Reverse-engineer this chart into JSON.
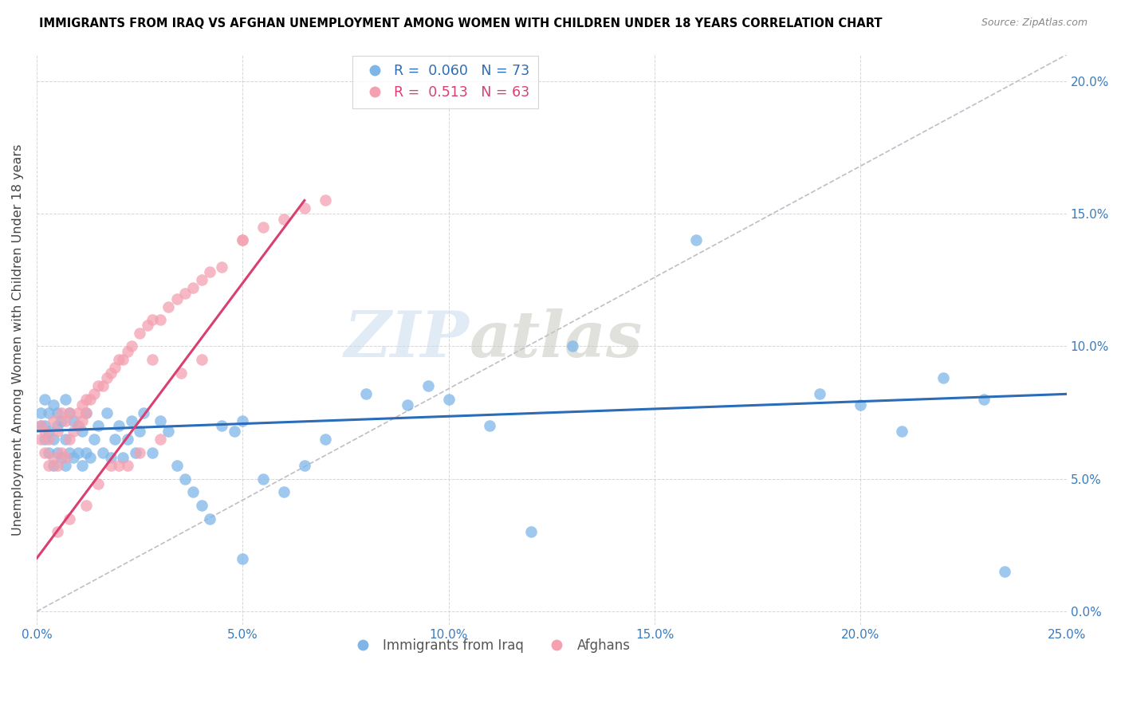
{
  "title": "IMMIGRANTS FROM IRAQ VS AFGHAN UNEMPLOYMENT AMONG WOMEN WITH CHILDREN UNDER 18 YEARS CORRELATION CHART",
  "source": "Source: ZipAtlas.com",
  "ylabel": "Unemployment Among Women with Children Under 18 years",
  "xlim": [
    0.0,
    0.25
  ],
  "ylim": [
    -0.005,
    0.21
  ],
  "xticks": [
    0.0,
    0.05,
    0.1,
    0.15,
    0.2,
    0.25
  ],
  "xtick_labels": [
    "0.0%",
    "5.0%",
    "10.0%",
    "15.0%",
    "20.0%",
    "25.0%"
  ],
  "yticks": [
    0.0,
    0.05,
    0.1,
    0.15,
    0.2
  ],
  "ytick_labels_right": [
    "0.0%",
    "5.0%",
    "10.0%",
    "15.0%",
    "20.0%"
  ],
  "color_iraq": "#7EB6E8",
  "color_afghan": "#F4A0B0",
  "trendline_iraq_color": "#2B6CB8",
  "trendline_afghan_color": "#D94070",
  "trendline_diag_color": "#BEBEC8",
  "watermark_zip": "ZIP",
  "watermark_atlas": "atlas",
  "legend_iraq_label": "R =  0.060   N = 73",
  "legend_afghan_label": "R =  0.513   N = 63",
  "bottom_legend_iraq": "Immigrants from Iraq",
  "bottom_legend_afghan": "Afghans",
  "iraq_x": [
    0.001,
    0.001,
    0.002,
    0.002,
    0.002,
    0.003,
    0.003,
    0.003,
    0.004,
    0.004,
    0.004,
    0.005,
    0.005,
    0.005,
    0.006,
    0.006,
    0.007,
    0.007,
    0.007,
    0.008,
    0.008,
    0.009,
    0.009,
    0.01,
    0.01,
    0.011,
    0.011,
    0.012,
    0.012,
    0.013,
    0.014,
    0.015,
    0.016,
    0.017,
    0.018,
    0.019,
    0.02,
    0.021,
    0.022,
    0.023,
    0.024,
    0.025,
    0.026,
    0.028,
    0.03,
    0.032,
    0.034,
    0.036,
    0.038,
    0.04,
    0.042,
    0.045,
    0.048,
    0.05,
    0.055,
    0.06,
    0.065,
    0.07,
    0.08,
    0.09,
    0.1,
    0.11,
    0.13,
    0.16,
    0.19,
    0.2,
    0.21,
    0.22,
    0.23,
    0.235,
    0.05,
    0.095,
    0.12
  ],
  "iraq_y": [
    0.07,
    0.075,
    0.065,
    0.07,
    0.08,
    0.06,
    0.068,
    0.075,
    0.055,
    0.065,
    0.078,
    0.06,
    0.07,
    0.075,
    0.058,
    0.072,
    0.055,
    0.065,
    0.08,
    0.06,
    0.075,
    0.058,
    0.072,
    0.06,
    0.07,
    0.055,
    0.068,
    0.06,
    0.075,
    0.058,
    0.065,
    0.07,
    0.06,
    0.075,
    0.058,
    0.065,
    0.07,
    0.058,
    0.065,
    0.072,
    0.06,
    0.068,
    0.075,
    0.06,
    0.072,
    0.068,
    0.055,
    0.05,
    0.045,
    0.04,
    0.035,
    0.07,
    0.068,
    0.072,
    0.05,
    0.045,
    0.055,
    0.065,
    0.082,
    0.078,
    0.08,
    0.07,
    0.1,
    0.14,
    0.082,
    0.078,
    0.068,
    0.088,
    0.08,
    0.015,
    0.02,
    0.085,
    0.03
  ],
  "afghan_x": [
    0.001,
    0.001,
    0.002,
    0.002,
    0.003,
    0.003,
    0.004,
    0.004,
    0.005,
    0.005,
    0.006,
    0.006,
    0.007,
    0.007,
    0.008,
    0.008,
    0.009,
    0.01,
    0.01,
    0.011,
    0.011,
    0.012,
    0.012,
    0.013,
    0.014,
    0.015,
    0.016,
    0.017,
    0.018,
    0.019,
    0.02,
    0.021,
    0.022,
    0.023,
    0.025,
    0.027,
    0.028,
    0.03,
    0.032,
    0.034,
    0.036,
    0.038,
    0.04,
    0.042,
    0.045,
    0.05,
    0.055,
    0.06,
    0.065,
    0.07,
    0.015,
    0.02,
    0.025,
    0.03,
    0.005,
    0.008,
    0.012,
    0.018,
    0.022,
    0.028,
    0.035,
    0.04,
    0.05
  ],
  "afghan_y": [
    0.065,
    0.07,
    0.06,
    0.068,
    0.055,
    0.065,
    0.058,
    0.072,
    0.055,
    0.068,
    0.06,
    0.075,
    0.058,
    0.072,
    0.065,
    0.075,
    0.068,
    0.07,
    0.075,
    0.072,
    0.078,
    0.075,
    0.08,
    0.08,
    0.082,
    0.085,
    0.085,
    0.088,
    0.09,
    0.092,
    0.095,
    0.095,
    0.098,
    0.1,
    0.105,
    0.108,
    0.11,
    0.11,
    0.115,
    0.118,
    0.12,
    0.122,
    0.125,
    0.128,
    0.13,
    0.14,
    0.145,
    0.148,
    0.152,
    0.155,
    0.048,
    0.055,
    0.06,
    0.065,
    0.03,
    0.035,
    0.04,
    0.055,
    0.055,
    0.095,
    0.09,
    0.095,
    0.14
  ]
}
